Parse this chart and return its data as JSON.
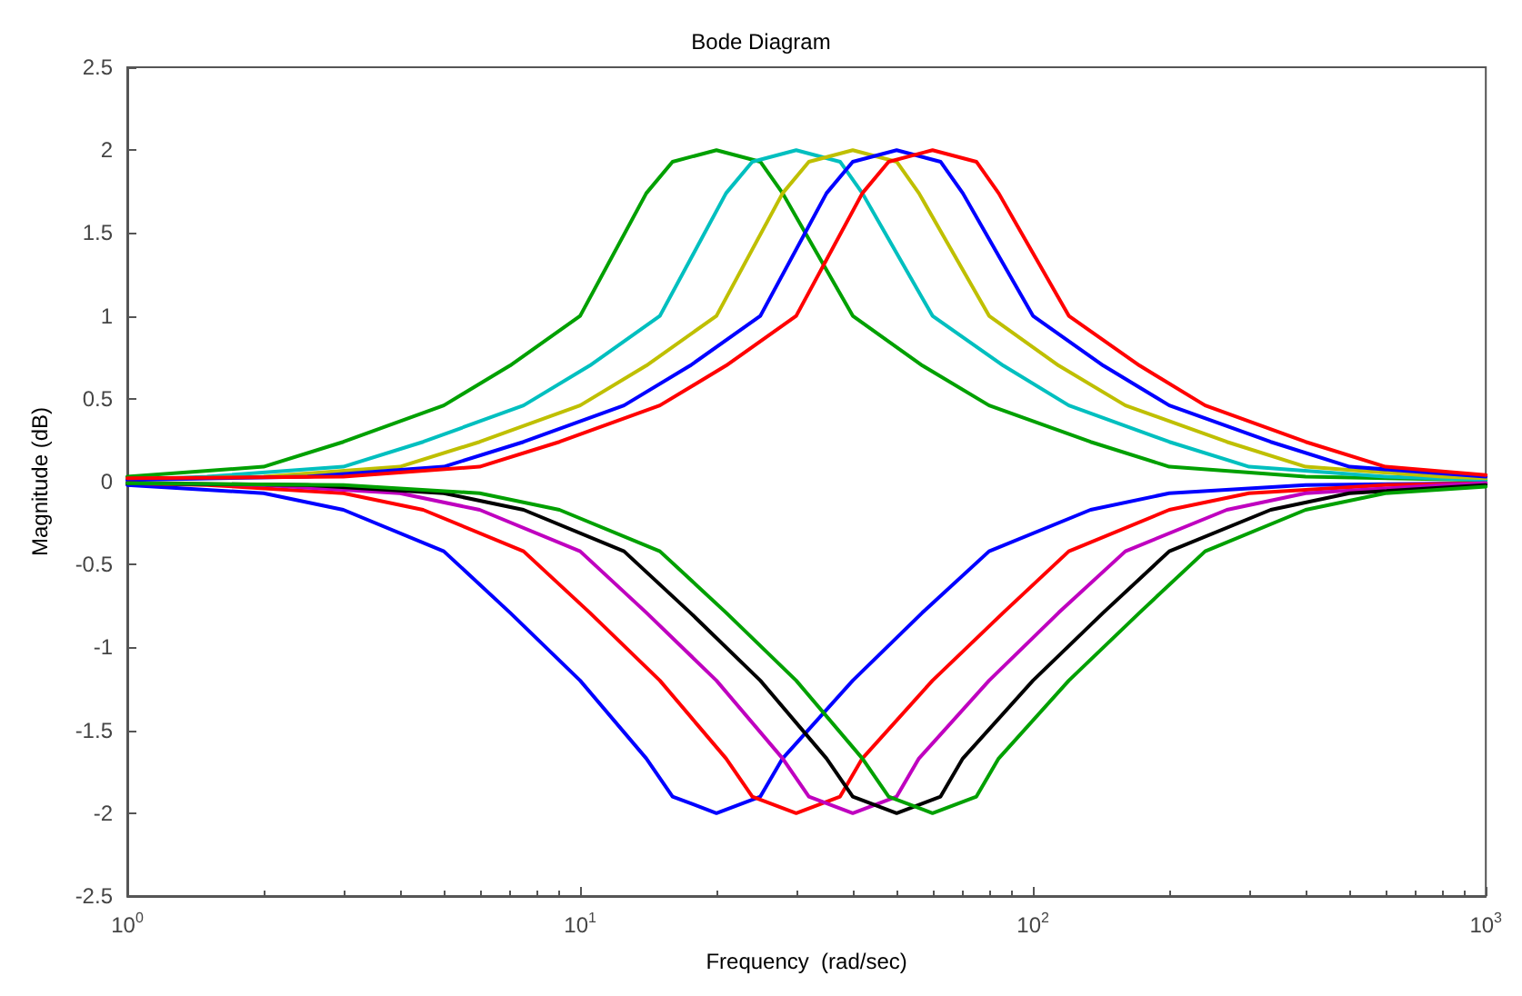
{
  "chart_data": {
    "type": "line",
    "title": "Bode Diagram",
    "xlabel": "Frequency  (rad/sec)",
    "ylabel": "Magnitude (dB)",
    "log": "x",
    "grid": false,
    "marker": "none",
    "line_style": "solid",
    "xlim": [
      1,
      1000
    ],
    "xticks": [
      {
        "value": 1,
        "label": "10$^{0}$"
      },
      {
        "value": 10,
        "label": "10$^{1}$"
      },
      {
        "value": 100,
        "label": "10$^{2}$"
      },
      {
        "value": 1000,
        "label": "10$^{3}$"
      }
    ],
    "ylim": [
      -2.5,
      2.5
    ],
    "yticks": [
      -2.5,
      -2,
      -1.5,
      -1,
      -0.5,
      0,
      0.5,
      1,
      1.5,
      2,
      2.5
    ],
    "series": [
      {
        "color": "#00a000",
        "x": [
          1,
          2,
          3,
          5,
          7,
          10,
          14,
          16,
          20,
          25,
          28,
          40,
          57,
          80,
          134,
          200,
          400,
          1000
        ],
        "values": [
          0.03,
          0.09,
          0.24,
          0.46,
          0.7,
          1.0,
          1.74,
          1.93,
          2,
          1.93,
          1.74,
          1.0,
          0.7,
          0.46,
          0.24,
          0.09,
          0.03,
          0.01
        ]
      },
      {
        "color": "#00bfbf",
        "x": [
          1,
          1.5,
          3,
          4.5,
          7.5,
          10.5,
          15,
          21,
          24,
          30,
          37.5,
          42,
          60,
          86,
          120,
          200,
          300,
          600,
          1000
        ],
        "values": [
          0.01,
          0.03,
          0.09,
          0.24,
          0.46,
          0.7,
          1.0,
          1.74,
          1.93,
          2,
          1.93,
          1.74,
          1.0,
          0.7,
          0.46,
          0.24,
          0.09,
          0.03,
          0.01
        ]
      },
      {
        "color": "#bfbf00",
        "x": [
          1,
          2,
          4,
          6,
          10,
          14,
          20,
          28,
          32,
          40,
          50,
          56,
          80,
          114,
          160,
          268,
          400,
          800,
          1000
        ],
        "values": [
          0.01,
          0.03,
          0.09,
          0.24,
          0.46,
          0.7,
          1.0,
          1.74,
          1.93,
          2,
          1.93,
          1.74,
          1.0,
          0.7,
          0.46,
          0.24,
          0.09,
          0.03,
          0.02
        ]
      },
      {
        "color": "#0000ff",
        "x": [
          1,
          2.5,
          5,
          7.5,
          12.5,
          17.5,
          25,
          35,
          40,
          50,
          62.5,
          70,
          100,
          143,
          200,
          335,
          500,
          1000
        ],
        "values": [
          0.01,
          0.03,
          0.09,
          0.24,
          0.46,
          0.7,
          1.0,
          1.74,
          1.93,
          2,
          1.93,
          1.74,
          1.0,
          0.7,
          0.46,
          0.24,
          0.09,
          0.03
        ]
      },
      {
        "color": "#ff0000",
        "x": [
          1,
          3,
          6,
          9,
          15,
          21,
          30,
          42,
          48,
          60,
          75,
          84,
          120,
          172,
          240,
          400,
          600,
          1000
        ],
        "values": [
          0.02,
          0.03,
          0.09,
          0.24,
          0.46,
          0.7,
          1.0,
          1.74,
          1.93,
          2,
          1.93,
          1.74,
          1.0,
          0.7,
          0.46,
          0.24,
          0.09,
          0.04
        ]
      },
      {
        "color": "#0000ff",
        "x": [
          1,
          2,
          3,
          5,
          7,
          10,
          14,
          16,
          20,
          25,
          28,
          40,
          57,
          80,
          134,
          200,
          400,
          1000
        ],
        "values": [
          -0.02,
          -0.07,
          -0.17,
          -0.42,
          -0.79,
          -1.2,
          -1.67,
          -1.9,
          -2,
          -1.9,
          -1.67,
          -1.2,
          -0.79,
          -0.42,
          -0.17,
          -0.07,
          -0.02,
          -0.01
        ]
      },
      {
        "color": "#ff0000",
        "x": [
          1,
          1.5,
          3,
          4.5,
          7.5,
          10.5,
          15,
          21,
          24,
          30,
          37.5,
          42,
          60,
          86,
          120,
          200,
          300,
          600,
          1000
        ],
        "values": [
          -0.01,
          -0.02,
          -0.07,
          -0.17,
          -0.42,
          -0.79,
          -1.2,
          -1.67,
          -1.9,
          -2,
          -1.9,
          -1.67,
          -1.2,
          -0.79,
          -0.42,
          -0.17,
          -0.07,
          -0.02,
          -0.01
        ]
      },
      {
        "color": "#bf00bf",
        "x": [
          1,
          2,
          4,
          6,
          10,
          14,
          20,
          28,
          32,
          40,
          50,
          56,
          80,
          114,
          160,
          268,
          400,
          800,
          1000
        ],
        "values": [
          -0.01,
          -0.02,
          -0.07,
          -0.17,
          -0.42,
          -0.79,
          -1.2,
          -1.67,
          -1.9,
          -2,
          -1.9,
          -1.67,
          -1.2,
          -0.79,
          -0.42,
          -0.17,
          -0.07,
          -0.02,
          -0.01
        ]
      },
      {
        "color": "#000000",
        "x": [
          1,
          2.5,
          5,
          7.5,
          12.5,
          17.5,
          25,
          35,
          40,
          50,
          62.5,
          70,
          100,
          143,
          200,
          335,
          500,
          1000
        ],
        "values": [
          -0.01,
          -0.02,
          -0.07,
          -0.17,
          -0.42,
          -0.79,
          -1.2,
          -1.67,
          -1.9,
          -2,
          -1.9,
          -1.67,
          -1.2,
          -0.79,
          -0.42,
          -0.17,
          -0.07,
          -0.02
        ]
      },
      {
        "color": "#00a000",
        "x": [
          1,
          3,
          6,
          9,
          15,
          21,
          30,
          42,
          48,
          60,
          75,
          84,
          120,
          172,
          240,
          400,
          600,
          1000
        ],
        "values": [
          -0.01,
          -0.02,
          -0.07,
          -0.17,
          -0.42,
          -0.79,
          -1.2,
          -1.67,
          -1.9,
          -2,
          -1.9,
          -1.67,
          -1.2,
          -0.79,
          -0.42,
          -0.17,
          -0.07,
          -0.03
        ]
      }
    ]
  }
}
